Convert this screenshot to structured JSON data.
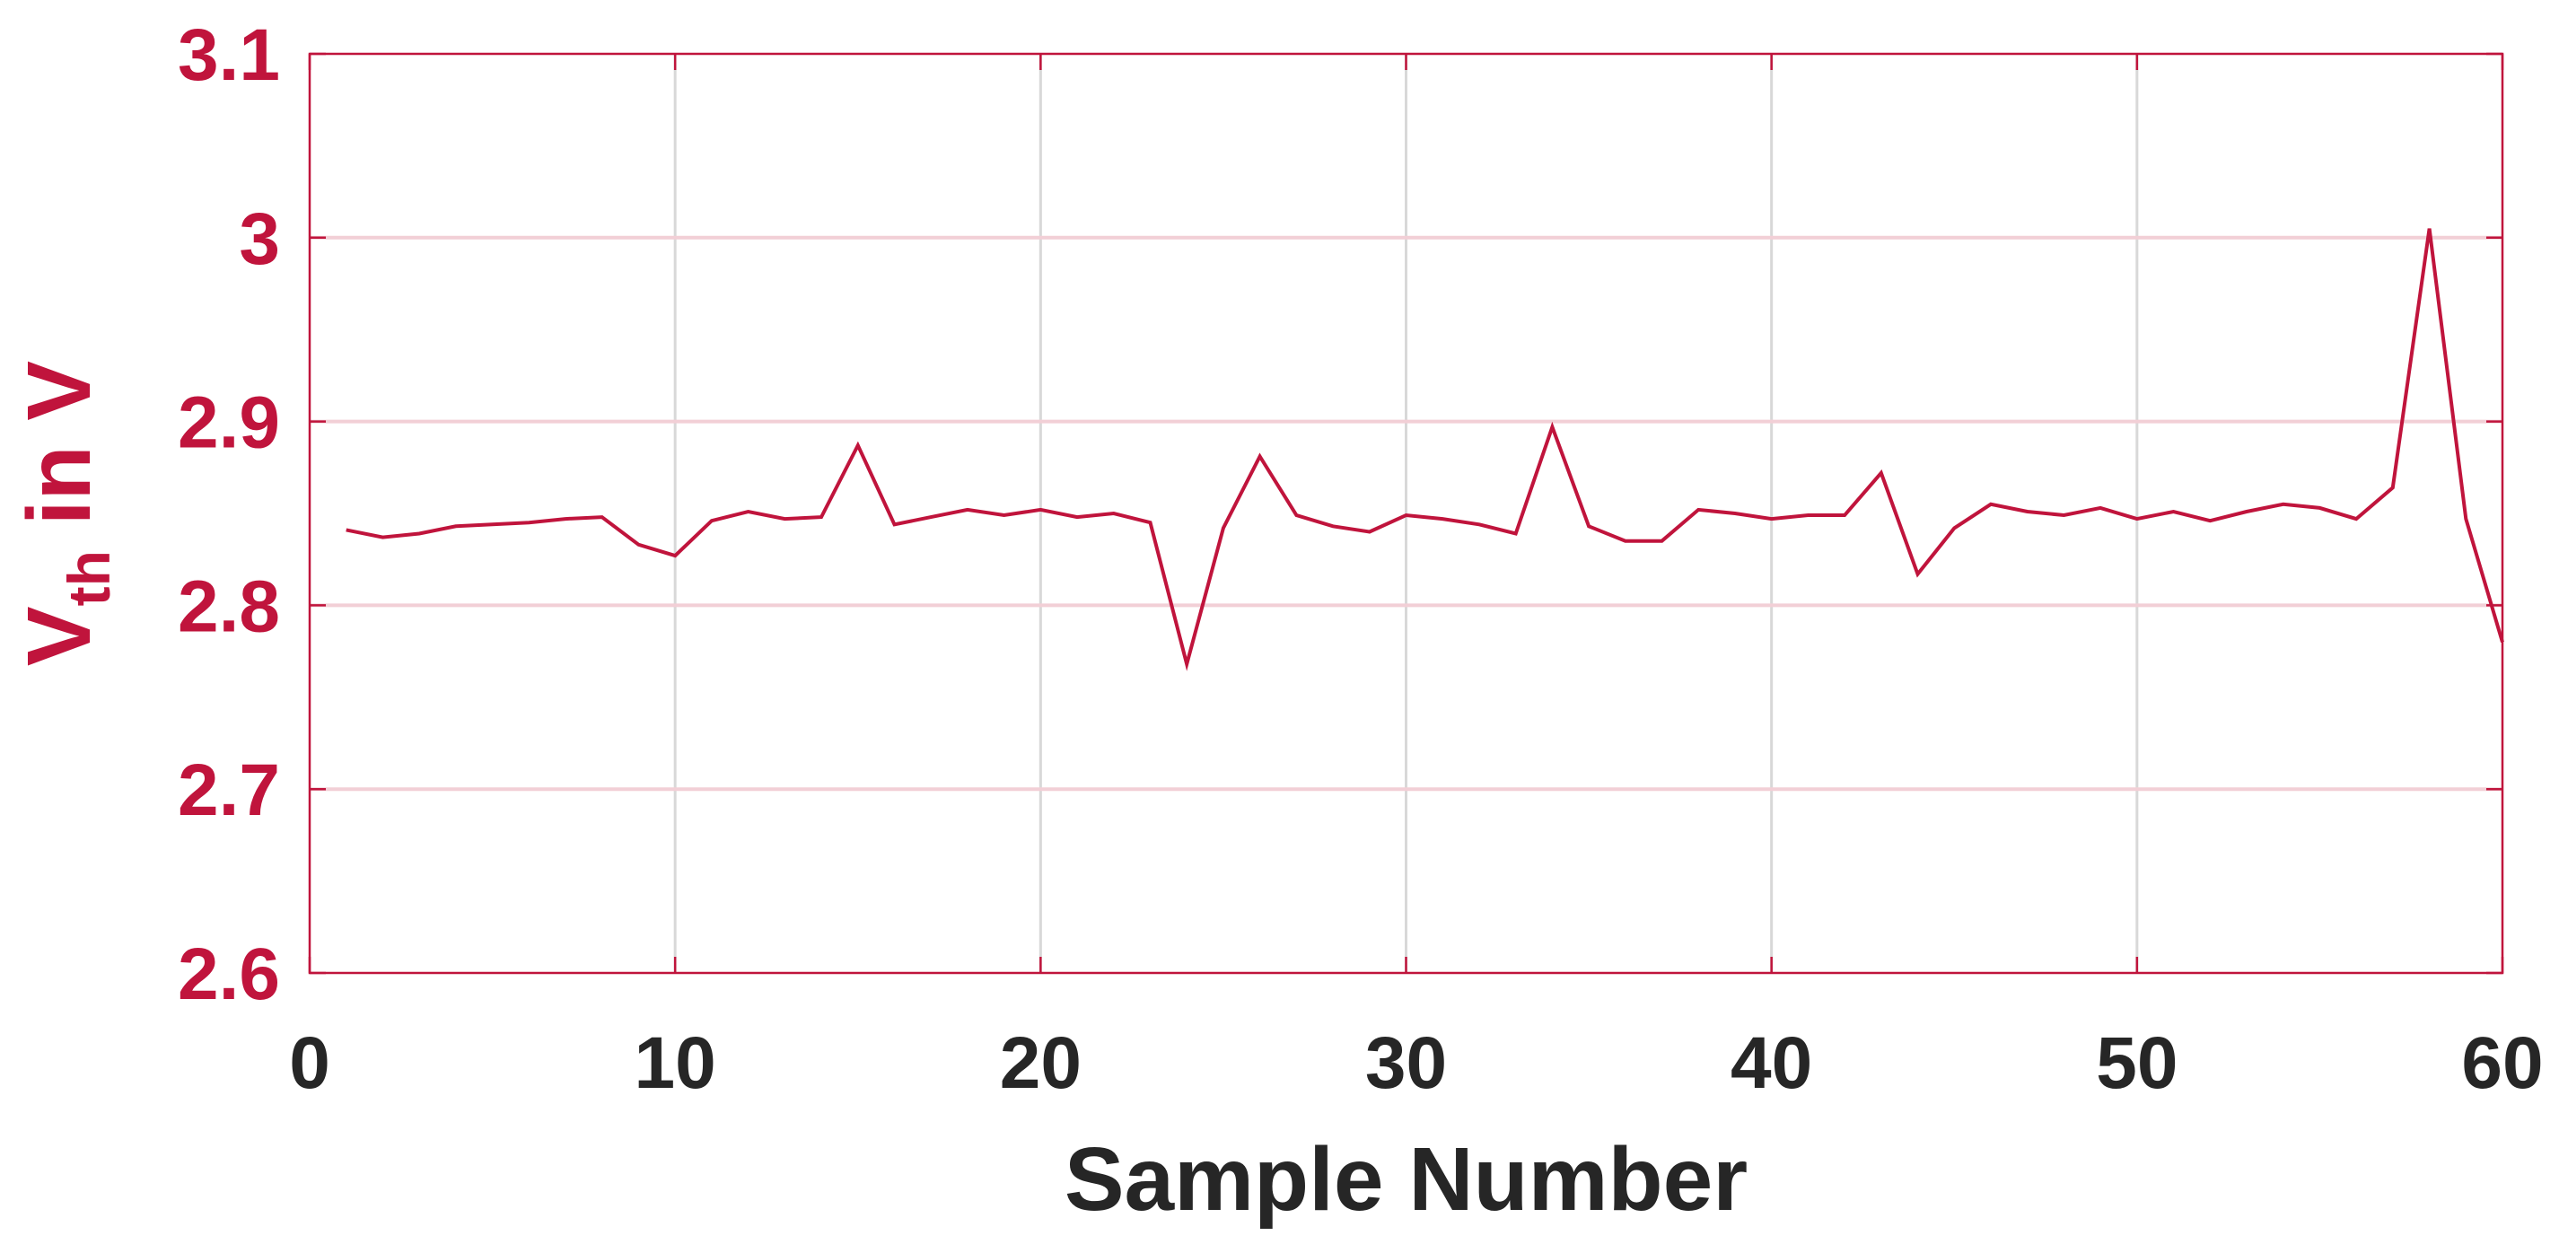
{
  "colors": {
    "line": "#C0143C",
    "y_axis": "#C0143C",
    "x_axis_text": "#262626",
    "grid_x": "#d8d8d8",
    "grid_y": "#f2cfd6",
    "background": "#ffffff"
  },
  "chart_data": {
    "type": "line",
    "title": "",
    "xlabel": "Sample Number",
    "ylabel": {
      "main": "V",
      "subscript": "th",
      "rest": " in V"
    },
    "xlim": [
      0,
      60
    ],
    "ylim": [
      2.6,
      3.1
    ],
    "xticks": [
      0,
      10,
      20,
      30,
      40,
      50,
      60
    ],
    "xtick_labels": [
      "0",
      "10",
      "20",
      "30",
      "40",
      "50",
      "60"
    ],
    "yticks": [
      2.6,
      2.7,
      2.8,
      2.9,
      3.0,
      3.1
    ],
    "ytick_labels": [
      "2.6",
      "2.7",
      "2.8",
      "2.9",
      "3",
      "3.1"
    ],
    "grid": true,
    "legend": "none",
    "series": [
      {
        "x": [
          1,
          2,
          3,
          4,
          5,
          6,
          7,
          8,
          9,
          10,
          11,
          12,
          13,
          14,
          15,
          16,
          17,
          18,
          19,
          20,
          21,
          22,
          23,
          24,
          25,
          26,
          27,
          28,
          29,
          30,
          31,
          32,
          33,
          34,
          35,
          36,
          37,
          38,
          39,
          40,
          41,
          42,
          43,
          44,
          45,
          46,
          47,
          48,
          49,
          50,
          51,
          52,
          53,
          54,
          55,
          56,
          57,
          58,
          59,
          60
        ],
        "values": [
          2.841,
          2.837,
          2.839,
          2.843,
          2.844,
          2.845,
          2.847,
          2.848,
          2.833,
          2.827,
          2.846,
          2.851,
          2.847,
          2.848,
          2.887,
          2.844,
          2.848,
          2.852,
          2.849,
          2.852,
          2.848,
          2.85,
          2.845,
          2.768,
          2.842,
          2.881,
          2.849,
          2.843,
          2.84,
          2.849,
          2.847,
          2.844,
          2.839,
          2.897,
          2.843,
          2.835,
          2.835,
          2.852,
          2.85,
          2.847,
          2.849,
          2.849,
          2.872,
          2.817,
          2.842,
          2.855,
          2.851,
          2.849,
          2.853,
          2.847,
          2.851,
          2.846,
          2.851,
          2.855,
          2.853,
          2.847,
          2.864,
          3.005,
          2.847,
          2.78
        ]
      }
    ]
  }
}
